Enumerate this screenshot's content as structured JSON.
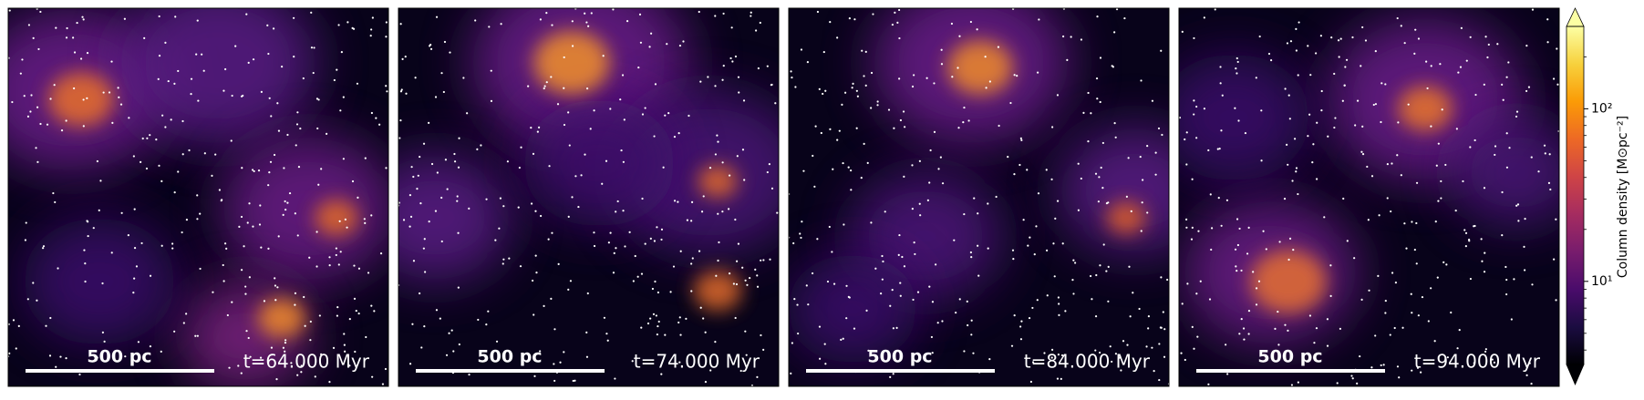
{
  "chart_data": {
    "type": "image-grid",
    "panels": [
      {
        "scale_bar_label": "500 pc",
        "time_label": "t=64.000 Myr"
      },
      {
        "scale_bar_label": "500 pc",
        "time_label": "t=74.000 Myr"
      },
      {
        "scale_bar_label": "500 pc",
        "time_label": "t=84.000 Myr"
      },
      {
        "scale_bar_label": "500 pc",
        "time_label": "t=94.000 Myr"
      }
    ],
    "colorbar": {
      "label": "Column density [M⊙pc⁻²]",
      "colormap": "inferno",
      "log_scale": true,
      "ylim": [
        3.3,
        300
      ],
      "yticks": [
        {
          "value": 10,
          "label": "10¹"
        },
        {
          "value": 100,
          "label": "10²"
        }
      ]
    }
  }
}
